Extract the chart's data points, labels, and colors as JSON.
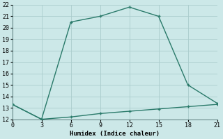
{
  "xlabel": "Humidex (Indice chaleur)",
  "line1_x": [
    0,
    3,
    6,
    9,
    12,
    15,
    18,
    21
  ],
  "line1_y": [
    13.3,
    12.0,
    20.5,
    21.0,
    21.8,
    21.0,
    15.0,
    13.4
  ],
  "line2_x": [
    0,
    3,
    6,
    9,
    12,
    15,
    18,
    21
  ],
  "line2_y": [
    13.3,
    12.0,
    12.2,
    12.5,
    12.7,
    12.9,
    13.1,
    13.3
  ],
  "line_color": "#2a7a6a",
  "bg_color": "#cce8e8",
  "grid_color": "#aacccc",
  "xlim": [
    0,
    21
  ],
  "ylim": [
    12,
    22
  ],
  "xticks": [
    0,
    3,
    6,
    9,
    12,
    15,
    18,
    21
  ],
  "yticks": [
    12,
    13,
    14,
    15,
    16,
    17,
    18,
    19,
    20,
    21,
    22
  ],
  "linewidth": 1.0,
  "markersize": 3.0
}
